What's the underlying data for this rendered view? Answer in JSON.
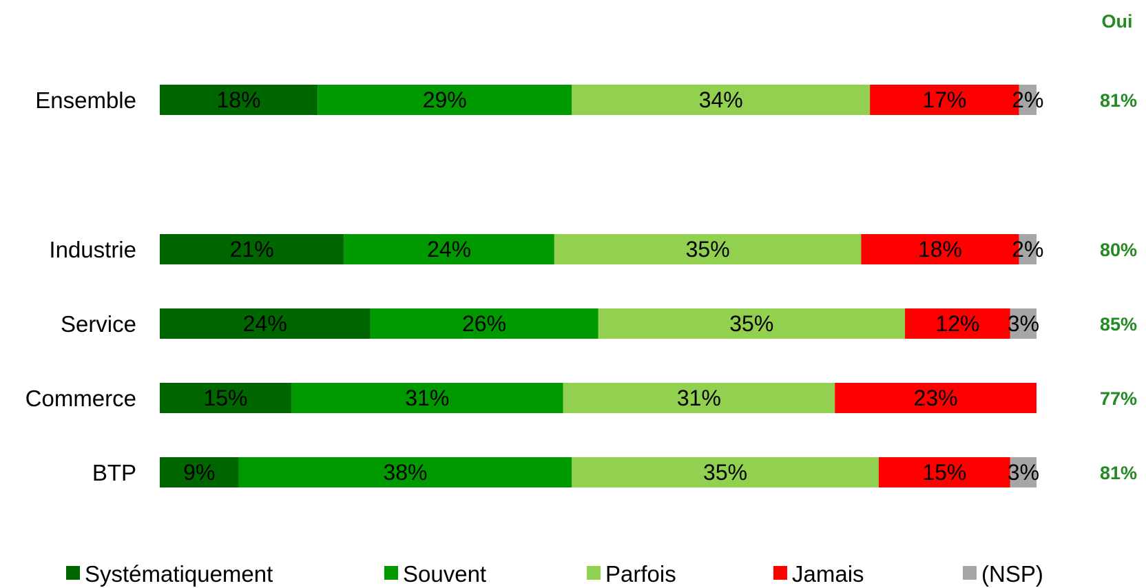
{
  "chart_data": {
    "type": "bar",
    "orientation": "horizontal",
    "stacked": true,
    "categories": [
      "Ensemble",
      "Industrie",
      "Service",
      "Commerce",
      "BTP"
    ],
    "series": [
      {
        "name": "Systématiquement",
        "color": "#006600",
        "values": [
          18,
          21,
          24,
          15,
          9
        ],
        "labels": [
          "18%",
          "21%",
          "24%",
          "15%",
          "9%"
        ]
      },
      {
        "name": "Souvent",
        "color": "#009900",
        "values": [
          29,
          24,
          26,
          31,
          38
        ],
        "labels": [
          "29%",
          "24%",
          "26%",
          "31%",
          "38%"
        ]
      },
      {
        "name": "Parfois",
        "color": "#92D050",
        "values": [
          34,
          35,
          35,
          31,
          35
        ],
        "labels": [
          "34%",
          "35%",
          "35%",
          "31%",
          "35%"
        ]
      },
      {
        "name": "Jamais",
        "color": "#FF0000",
        "values": [
          17,
          18,
          12,
          23,
          15
        ],
        "labels": [
          "17%",
          "18%",
          "12%",
          "23%",
          "15%"
        ]
      },
      {
        "name": "(NSP)",
        "color": "#A6A6A6",
        "values": [
          2,
          2,
          3,
          0,
          3
        ],
        "labels": [
          "2%",
          "2%",
          "3%",
          "",
          "3%"
        ]
      }
    ],
    "total_column": {
      "title": "Oui",
      "color": "#228B22",
      "values": [
        "81%",
        "80%",
        "85%",
        "77%",
        "81%"
      ]
    },
    "legend_position": "bottom",
    "grid": false,
    "xlim": [
      0,
      100
    ]
  }
}
